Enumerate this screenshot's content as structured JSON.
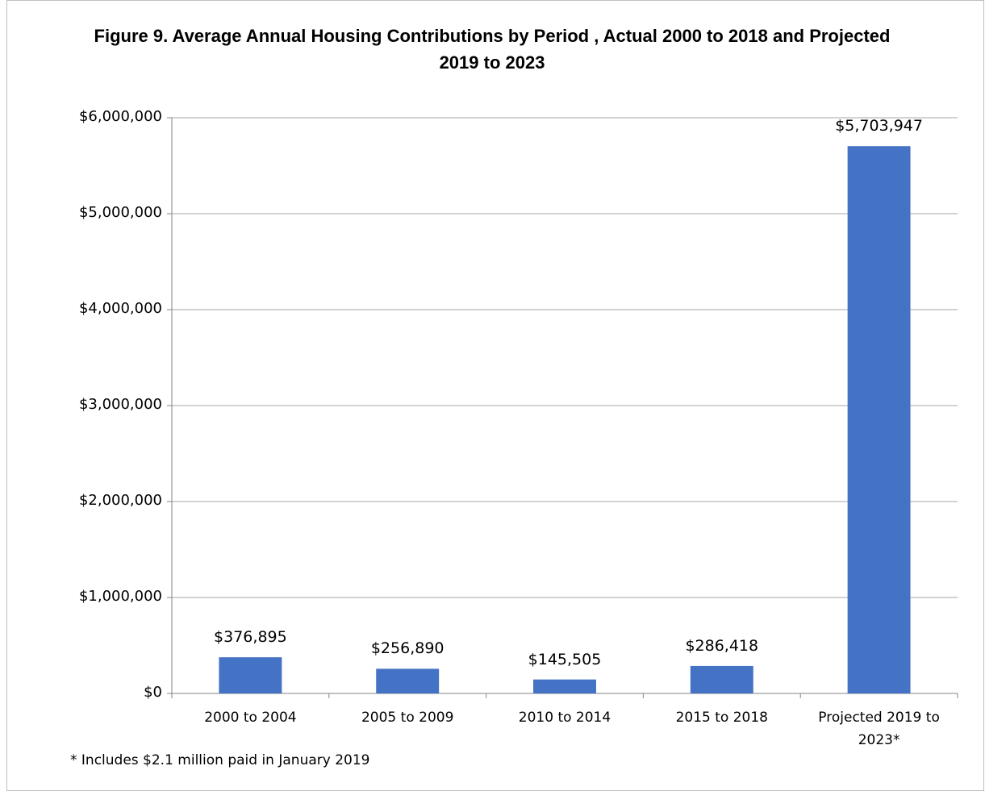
{
  "chart_data": {
    "type": "bar",
    "title": "Figure 9. Average  Annual Housing Contributions by Period , Actual 2000 to 2018 and Projected 2019 to 2023",
    "categories": [
      "2000 to 2004",
      "2005 to 2009",
      "2010 to 2014",
      "2015 to 2018",
      "Projected 2019 to 2023*"
    ],
    "values": [
      376895,
      256890,
      145505,
      286418,
      5703947
    ],
    "value_labels": [
      "$376,895",
      "$256,890",
      "$145,505",
      "$286,418",
      "$5,703,947"
    ],
    "color": "#4472c4",
    "ylim": [
      0,
      6000000
    ],
    "yticks": [
      {
        "value": 0,
        "label": "$0"
      },
      {
        "value": 1000000,
        "label": "$1,000,000"
      },
      {
        "value": 2000000,
        "label": "$2,000,000"
      },
      {
        "value": 3000000,
        "label": "$3,000,000"
      },
      {
        "value": 4000000,
        "label": "$4,000,000"
      },
      {
        "value": 5000000,
        "label": "$5,000,000"
      },
      {
        "value": 6000000,
        "label": "$6,000,000"
      }
    ],
    "grid": true,
    "note": "* Includes $2.1 million paid in January 2019"
  }
}
